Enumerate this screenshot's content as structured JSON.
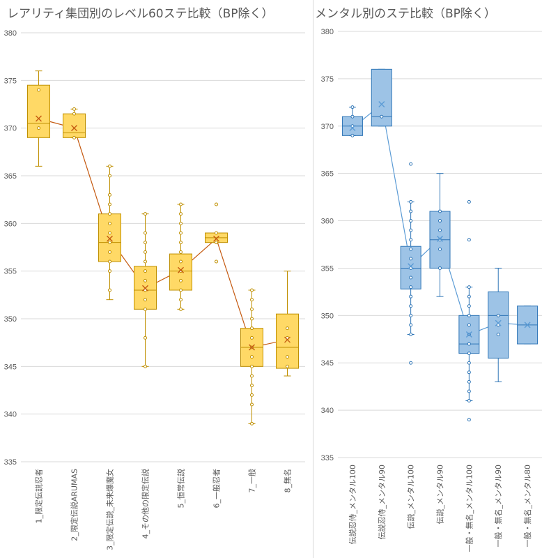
{
  "chart_data": [
    {
      "type": "box",
      "title": "レアリティ集団別のレベル60ステ比較（BP除く）",
      "ylim": [
        335,
        380
      ],
      "ytick_step": 5,
      "grid": true,
      "box_fill": "#FFD966",
      "box_stroke": "#BF8F00",
      "mean_line_color": "#C55A11",
      "categories": [
        "1_限定伝説忍者",
        "2_限定伝説ARUMAS",
        "3_限定伝説_未来爆魔女",
        "4_その他の限定伝説",
        "5_恒常伝説",
        "6_一般忍者",
        "7_一般",
        "8_無名"
      ],
      "boxes": [
        {
          "min": 366,
          "q1": 369,
          "median": 370.5,
          "q3": 374.5,
          "max": 376,
          "mean": 371,
          "points": [
            374,
            370
          ]
        },
        {
          "min": 369,
          "q1": 369,
          "median": 369.5,
          "q3": 371.5,
          "max": 372,
          "mean": 370,
          "points": [
            372,
            371.5,
            369
          ]
        },
        {
          "min": 352,
          "q1": 356,
          "median": 358,
          "q3": 361,
          "max": 366,
          "mean": 358.4,
          "points": [
            366,
            365,
            363,
            362,
            361,
            360,
            359,
            358,
            357,
            356,
            355,
            353
          ]
        },
        {
          "min": 345,
          "q1": 351,
          "median": 353,
          "q3": 355.5,
          "max": 361,
          "mean": 353.2,
          "points": [
            361,
            359,
            358,
            357,
            356,
            355,
            354,
            353,
            352,
            351,
            348,
            345
          ]
        },
        {
          "min": 351,
          "q1": 353,
          "median": 355,
          "q3": 356.8,
          "max": 362,
          "mean": 355.1,
          "points": [
            362,
            361,
            360,
            359,
            358,
            357,
            356,
            355,
            354,
            353,
            352,
            351
          ]
        },
        {
          "min": 358,
          "q1": 358,
          "median": 358.5,
          "q3": 359,
          "max": 359,
          "mean": 358.4,
          "points": [
            362,
            359,
            358,
            356
          ]
        },
        {
          "min": 339,
          "q1": 345,
          "median": 347,
          "q3": 349,
          "max": 353,
          "mean": 347,
          "points": [
            353,
            352,
            351,
            350,
            349,
            348,
            347,
            346,
            345,
            344,
            343,
            342,
            341,
            339
          ]
        },
        {
          "min": 344,
          "q1": 344.8,
          "median": 347,
          "q3": 350.5,
          "max": 355,
          "mean": 347.8,
          "points": [
            349,
            348,
            346,
            345
          ]
        }
      ]
    },
    {
      "type": "box",
      "title": "メンタル別のステ比較（BP除く）",
      "ylim": [
        335,
        380
      ],
      "ytick_step": 5,
      "grid": true,
      "box_fill": "#9DC3E6",
      "box_stroke": "#2E75B6",
      "mean_line_color": "#5B9BD5",
      "categories": [
        "伝説忍侍_メンタル100",
        "伝説忍侍_メンタル90",
        "伝説_メンタル100",
        "伝説_メンタル90",
        "一般・無名_メンタル100",
        "一般・無名_メンタル90",
        "一般・無名_メンタル80"
      ],
      "boxes": [
        {
          "min": 369,
          "q1": 369,
          "median": 370,
          "q3": 371,
          "max": 372,
          "mean": 369.8,
          "points": [
            372,
            371,
            370,
            369
          ]
        },
        {
          "min": 370,
          "q1": 370,
          "median": 371,
          "q3": 376,
          "max": 376,
          "mean": 372.3,
          "points": [
            371
          ]
        },
        {
          "min": 348,
          "q1": 352.8,
          "median": 355,
          "q3": 357.3,
          "max": 362,
          "mean": 355.2,
          "points": [
            366,
            362,
            361,
            360,
            359,
            358,
            357,
            356,
            355,
            354,
            353,
            352,
            351,
            350,
            349,
            348,
            345
          ]
        },
        {
          "min": 352,
          "q1": 355,
          "median": 358,
          "q3": 361,
          "max": 365,
          "mean": 358.1,
          "points": [
            361,
            360,
            359,
            358,
            357,
            355
          ]
        },
        {
          "min": 341,
          "q1": 346,
          "median": 347,
          "q3": 350,
          "max": 353,
          "mean": 348,
          "points": [
            362,
            358,
            353,
            352,
            351,
            350,
            349,
            348,
            347,
            346,
            345,
            344,
            343,
            342,
            341,
            339
          ]
        },
        {
          "min": 343,
          "q1": 345.5,
          "median": 350,
          "q3": 352.5,
          "max": 355,
          "mean": 349.2,
          "points": [
            350,
            349,
            348
          ]
        },
        {
          "min": 347,
          "q1": 347,
          "median": 349,
          "q3": 351,
          "max": 351,
          "mean": 349,
          "points": []
        }
      ]
    }
  ]
}
